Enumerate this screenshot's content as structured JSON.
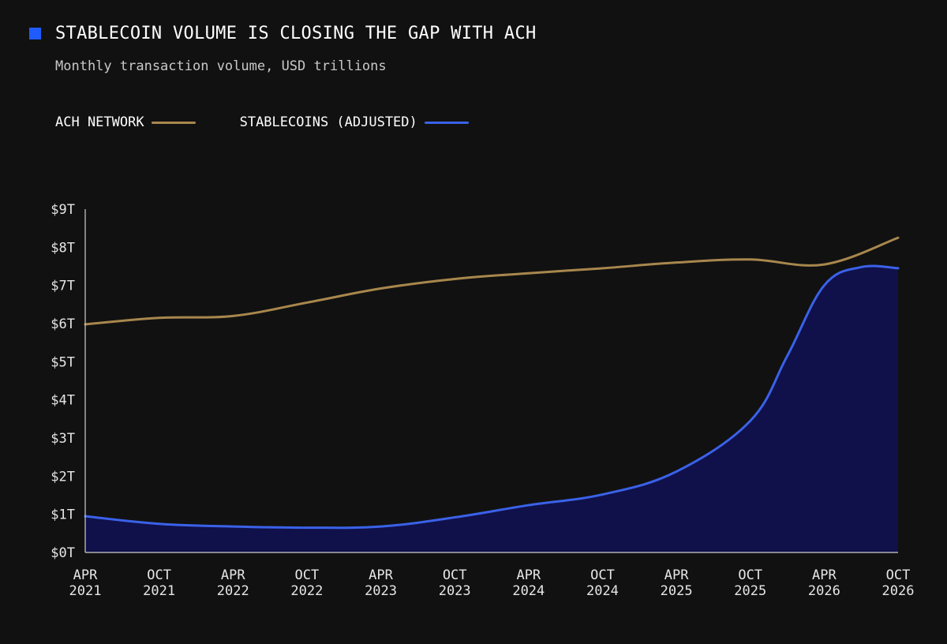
{
  "title": "STABLECOIN VOLUME IS CLOSING THE GAP WITH ACH",
  "subtitle": "Monthly transaction volume, USD trillions",
  "colors": {
    "accent": "#1e5cff",
    "ach": "#a8874d",
    "stablecoin": "#3a62e8",
    "stablecoin_fill": "#10114a",
    "background": "#111111"
  },
  "chart_data": {
    "type": "area",
    "x_ticks": [
      "APR 2021",
      "OCT 2021",
      "APR 2022",
      "OCT 2022",
      "APR 2023",
      "OCT 2023",
      "APR 2024",
      "OCT 2024",
      "APR 2025",
      "OCT 2025",
      "APR 2026",
      "OCT 2026"
    ],
    "y_ticks": [
      "$0T",
      "$1T",
      "$2T",
      "$3T",
      "$4T",
      "$5T",
      "$6T",
      "$7T",
      "$8T",
      "$9T"
    ],
    "ylim": [
      0,
      9
    ],
    "series": [
      {
        "name": "ACH NETWORK",
        "key": "ach",
        "x": [
          "2021-04",
          "2021-10",
          "2022-04",
          "2022-10",
          "2023-04",
          "2023-10",
          "2024-04",
          "2024-10",
          "2025-04",
          "2025-10",
          "2026-04",
          "2026-10"
        ],
        "values": [
          5.98,
          6.15,
          6.2,
          6.55,
          6.92,
          7.17,
          7.32,
          7.45,
          7.6,
          7.68,
          7.55,
          8.25
        ]
      },
      {
        "name": "STABLECOINS (ADJUSTED)",
        "key": "stablecoin",
        "x": [
          "2021-04",
          "2021-10",
          "2022-04",
          "2022-10",
          "2023-04",
          "2023-10",
          "2024-04",
          "2024-10",
          "2025-04",
          "2025-10",
          "2026-01",
          "2026-04",
          "2026-07",
          "2026-10"
        ],
        "values": [
          0.95,
          0.75,
          0.68,
          0.65,
          0.68,
          0.92,
          1.24,
          1.52,
          2.12,
          3.45,
          5.15,
          7.0,
          7.48,
          7.45
        ]
      }
    ],
    "grid": false,
    "legend_position": "top-left"
  }
}
